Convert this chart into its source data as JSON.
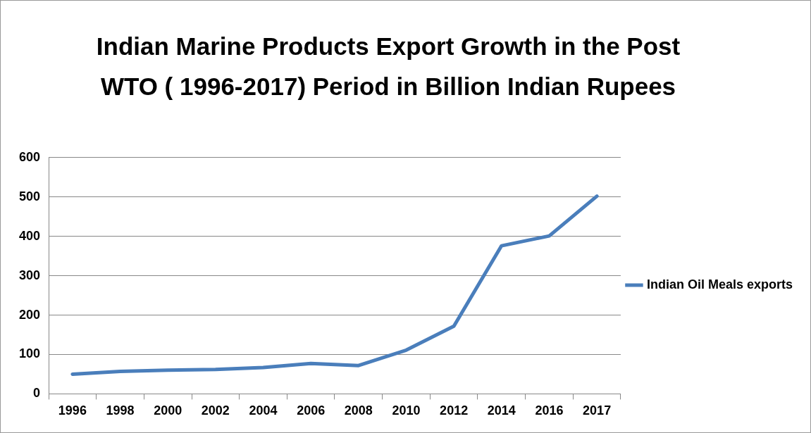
{
  "chart_data": {
    "type": "line",
    "title": "Indian Marine Products Export Growth in the Post WTO ( 1996-2017) Period in Billion Indian Rupees",
    "categories": [
      "1996",
      "1998",
      "2000",
      "2002",
      "2004",
      "2006",
      "2008",
      "2010",
      "2012",
      "2014",
      "2016",
      "2017"
    ],
    "series": [
      {
        "name": "Indian Oil Meals exports",
        "color": "#4a7ebb",
        "values": [
          50,
          57,
          60,
          62,
          67,
          77,
          72,
          111,
          172,
          376,
          401,
          502
        ]
      }
    ],
    "ylim": [
      0,
      600
    ],
    "yticks": [
      0,
      100,
      200,
      300,
      400,
      500,
      600
    ],
    "grid": "y",
    "legend": "right",
    "marker": "none",
    "line_style": "solid"
  }
}
